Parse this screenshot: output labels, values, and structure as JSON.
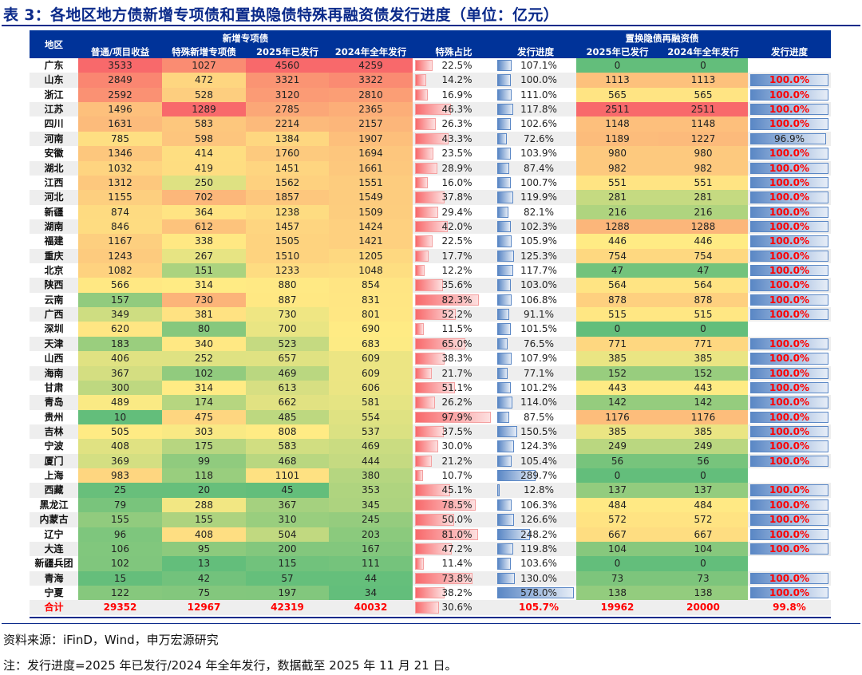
{
  "title": "表 3：各地区地方债新增专项债和置换隐债特殊再融资债发行进度（单位：亿元）",
  "headers": {
    "region": "地区",
    "group_new": "新增专项债",
    "group_refi": "置换隐债再融资债",
    "cols": [
      "普通/项目收益",
      "特殊新增专项债",
      "2025年已发行",
      "2024年全年发行",
      "特殊占比",
      "发行进度",
      "2025年已发行",
      "2024年全年发行",
      "发行进度"
    ]
  },
  "colors": {
    "header": "#003399",
    "heat_low": "#63BE7B",
    "heat_mid": "#FFEB84",
    "heat_high": "#F8696B",
    "share_bar": "#F8696B",
    "progress_bar": "#5A87C5",
    "highlight_text": "#FF0000"
  },
  "chart_data": {
    "type": "table",
    "rows": [
      [
        "广东",
        3533,
        1027,
        4560,
        4259,
        "22.5%",
        "107.1%",
        0,
        0,
        null
      ],
      [
        "山东",
        2849,
        472,
        3321,
        3322,
        "14.2%",
        "100.0%",
        1113,
        1113,
        "100.0%"
      ],
      [
        "浙江",
        2592,
        528,
        3120,
        2810,
        "16.9%",
        "111.0%",
        565,
        565,
        "100.0%"
      ],
      [
        "江苏",
        1496,
        1289,
        2785,
        2365,
        "46.3%",
        "117.8%",
        2511,
        2511,
        "100.0%"
      ],
      [
        "四川",
        1631,
        583,
        2214,
        2157,
        "26.3%",
        "102.6%",
        1148,
        1148,
        "100.0%"
      ],
      [
        "河南",
        785,
        598,
        1384,
        1907,
        "43.3%",
        "72.6%",
        1189,
        1227,
        "96.9%"
      ],
      [
        "安徽",
        1346,
        414,
        1760,
        1694,
        "23.5%",
        "103.9%",
        980,
        980,
        "100.0%"
      ],
      [
        "湖北",
        1032,
        419,
        1451,
        1661,
        "28.9%",
        "87.4%",
        982,
        982,
        "100.0%"
      ],
      [
        "江西",
        1312,
        250,
        1562,
        1551,
        "16.0%",
        "100.7%",
        551,
        551,
        "100.0%"
      ],
      [
        "河北",
        1155,
        702,
        1857,
        1549,
        "37.8%",
        "119.9%",
        281,
        281,
        "100.0%"
      ],
      [
        "新疆",
        874,
        364,
        1238,
        1509,
        "29.4%",
        "82.1%",
        216,
        216,
        "100.0%"
      ],
      [
        "湖南",
        846,
        612,
        1457,
        1424,
        "42.0%",
        "102.3%",
        1288,
        1288,
        "100.0%"
      ],
      [
        "福建",
        1167,
        338,
        1505,
        1421,
        "22.5%",
        "105.9%",
        446,
        446,
        "100.0%"
      ],
      [
        "重庆",
        1243,
        267,
        1510,
        1205,
        "17.7%",
        "125.3%",
        754,
        754,
        "100.0%"
      ],
      [
        "北京",
        1082,
        151,
        1233,
        1048,
        "12.2%",
        "117.7%",
        47,
        47,
        "100.0%"
      ],
      [
        "陕西",
        566,
        314,
        880,
        854,
        "35.6%",
        "103.0%",
        564,
        564,
        "100.0%"
      ],
      [
        "云南",
        157,
        730,
        887,
        831,
        "82.3%",
        "106.8%",
        878,
        878,
        "100.0%"
      ],
      [
        "广西",
        349,
        381,
        730,
        801,
        "52.2%",
        "91.1%",
        515,
        515,
        "100.0%"
      ],
      [
        "深圳",
        620,
        80,
        700,
        690,
        "11.5%",
        "101.5%",
        0,
        0,
        null
      ],
      [
        "天津",
        183,
        340,
        523,
        683,
        "65.0%",
        "76.5%",
        771,
        771,
        "100.0%"
      ],
      [
        "山西",
        406,
        252,
        657,
        609,
        "38.3%",
        "107.9%",
        385,
        385,
        "100.0%"
      ],
      [
        "海南",
        367,
        102,
        469,
        609,
        "21.7%",
        "77.1%",
        152,
        152,
        "100.0%"
      ],
      [
        "甘肃",
        300,
        314,
        613,
        606,
        "51.1%",
        "101.2%",
        443,
        443,
        "100.0%"
      ],
      [
        "青岛",
        489,
        174,
        662,
        581,
        "26.2%",
        "114.0%",
        142,
        142,
        "100.0%"
      ],
      [
        "贵州",
        10,
        475,
        485,
        554,
        "97.9%",
        "87.5%",
        1176,
        1176,
        "100.0%"
      ],
      [
        "吉林",
        505,
        303,
        808,
        537,
        "37.5%",
        "150.5%",
        385,
        385,
        "100.0%"
      ],
      [
        "宁波",
        408,
        175,
        583,
        469,
        "30.0%",
        "124.3%",
        249,
        249,
        "100.0%"
      ],
      [
        "厦门",
        369,
        99,
        468,
        444,
        "21.2%",
        "105.4%",
        56,
        56,
        "100.0%"
      ],
      [
        "上海",
        983,
        118,
        1101,
        380,
        "10.7%",
        "289.7%",
        0,
        0,
        null
      ],
      [
        "西藏",
        25,
        20,
        45,
        353,
        "45.1%",
        "12.8%",
        137,
        137,
        "100.0%"
      ],
      [
        "黑龙江",
        79,
        288,
        367,
        345,
        "78.5%",
        "106.3%",
        484,
        484,
        "100.0%"
      ],
      [
        "内蒙古",
        155,
        155,
        310,
        245,
        "50.0%",
        "126.6%",
        572,
        572,
        "100.0%"
      ],
      [
        "辽宁",
        96,
        408,
        504,
        203,
        "81.0%",
        "248.2%",
        667,
        667,
        "100.0%"
      ],
      [
        "大连",
        106,
        95,
        200,
        167,
        "47.2%",
        "119.8%",
        104,
        104,
        "100.0%"
      ],
      [
        "新疆兵团",
        102,
        13,
        115,
        111,
        "11.4%",
        "103.6%",
        0,
        0,
        null
      ],
      [
        "青海",
        15,
        42,
        57,
        44,
        "73.8%",
        "130.0%",
        73,
        73,
        "100.0%"
      ],
      [
        "宁夏",
        122,
        75,
        197,
        34,
        "38.2%",
        "578.0%",
        138,
        138,
        "100.0%"
      ]
    ],
    "total": [
      "合计",
      29352,
      12967,
      42319,
      40032,
      "30.6%",
      "105.7%",
      19962,
      20000,
      "99.8%"
    ]
  },
  "footer": {
    "source": "资料来源：iFinD，Wind，申万宏源研究",
    "note": "注：发行进度=2025 年已发行/2024 年全年发行，数据截至 2025 年 11 月 21 日。"
  }
}
